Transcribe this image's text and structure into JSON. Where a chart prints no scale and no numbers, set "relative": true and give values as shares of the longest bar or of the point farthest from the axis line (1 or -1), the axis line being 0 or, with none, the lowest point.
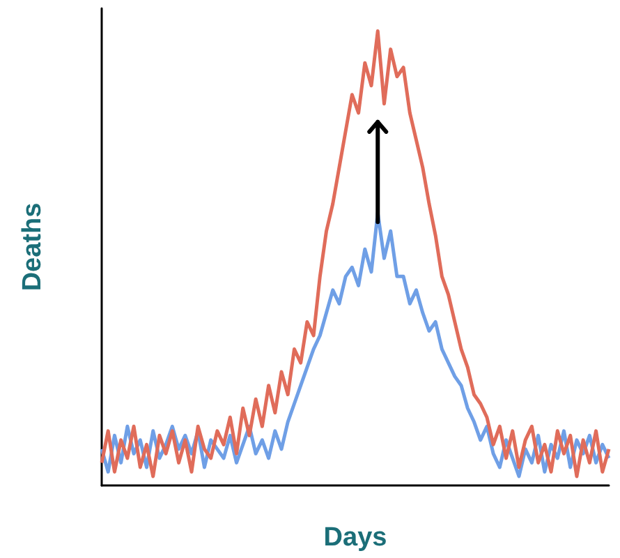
{
  "chart_data": {
    "type": "line",
    "relative": true,
    "xlabel": "Days",
    "ylabel": "Deaths",
    "line_style": "solid",
    "categories": [
      null,
      null,
      null,
      null,
      null,
      null,
      null,
      null,
      null,
      null,
      null,
      null,
      null,
      null,
      null,
      null,
      null,
      null,
      null,
      null,
      null,
      null,
      null,
      null,
      null,
      null,
      null,
      null,
      null,
      null,
      null,
      null,
      null,
      null,
      null,
      null,
      null,
      null,
      null,
      null,
      null,
      null,
      null,
      null,
      null,
      null,
      null,
      null,
      null,
      null,
      null,
      null,
      null,
      null,
      null,
      null,
      null,
      null,
      null,
      null,
      null,
      null,
      null,
      null,
      null,
      null,
      null,
      null,
      null,
      null,
      null,
      null,
      null,
      null,
      null,
      null,
      null,
      null,
      null,
      null
    ],
    "series": [
      {
        "color": "#6f9fe6",
        "values": [
          0.08,
          0.03,
          0.11,
          0.05,
          0.13,
          0.07,
          0.1,
          0.04,
          0.12,
          0.06,
          0.09,
          0.13,
          0.08,
          0.11,
          0.07,
          0.12,
          0.04,
          0.1,
          0.08,
          0.06,
          0.11,
          0.05,
          0.09,
          0.13,
          0.07,
          0.1,
          0.06,
          0.12,
          0.08,
          0.14,
          0.18,
          0.22,
          0.26,
          0.3,
          0.33,
          0.38,
          0.43,
          0.4,
          0.46,
          0.48,
          0.44,
          0.52,
          0.47,
          0.6,
          0.5,
          0.56,
          0.46,
          0.46,
          0.4,
          0.43,
          0.38,
          0.34,
          0.36,
          0.3,
          0.27,
          0.24,
          0.22,
          0.17,
          0.14,
          0.1,
          0.13,
          0.07,
          0.04,
          0.1,
          0.06,
          0.02,
          0.08,
          0.05,
          0.11,
          0.03,
          0.09,
          0.06,
          0.12,
          0.04,
          0.1,
          0.07,
          0.11,
          0.05,
          0.09,
          0.06
        ]
      },
      {
        "color": "#e06c5a",
        "values": [
          0.05,
          0.12,
          0.03,
          0.1,
          0.06,
          0.13,
          0.04,
          0.09,
          0.02,
          0.11,
          0.07,
          0.12,
          0.05,
          0.1,
          0.03,
          0.13,
          0.08,
          0.06,
          0.12,
          0.09,
          0.15,
          0.07,
          0.17,
          0.11,
          0.19,
          0.13,
          0.22,
          0.16,
          0.25,
          0.2,
          0.3,
          0.27,
          0.36,
          0.33,
          0.46,
          0.56,
          0.62,
          0.7,
          0.78,
          0.86,
          0.82,
          0.93,
          0.88,
          1.0,
          0.84,
          0.96,
          0.9,
          0.92,
          0.82,
          0.76,
          0.7,
          0.62,
          0.55,
          0.46,
          0.42,
          0.36,
          0.3,
          0.26,
          0.2,
          0.18,
          0.15,
          0.09,
          0.13,
          0.06,
          0.12,
          0.04,
          0.1,
          0.13,
          0.05,
          0.09,
          0.03,
          0.12,
          0.07,
          0.11,
          0.02,
          0.1,
          0.05,
          0.12,
          0.03,
          0.08
        ]
      }
    ]
  }
}
